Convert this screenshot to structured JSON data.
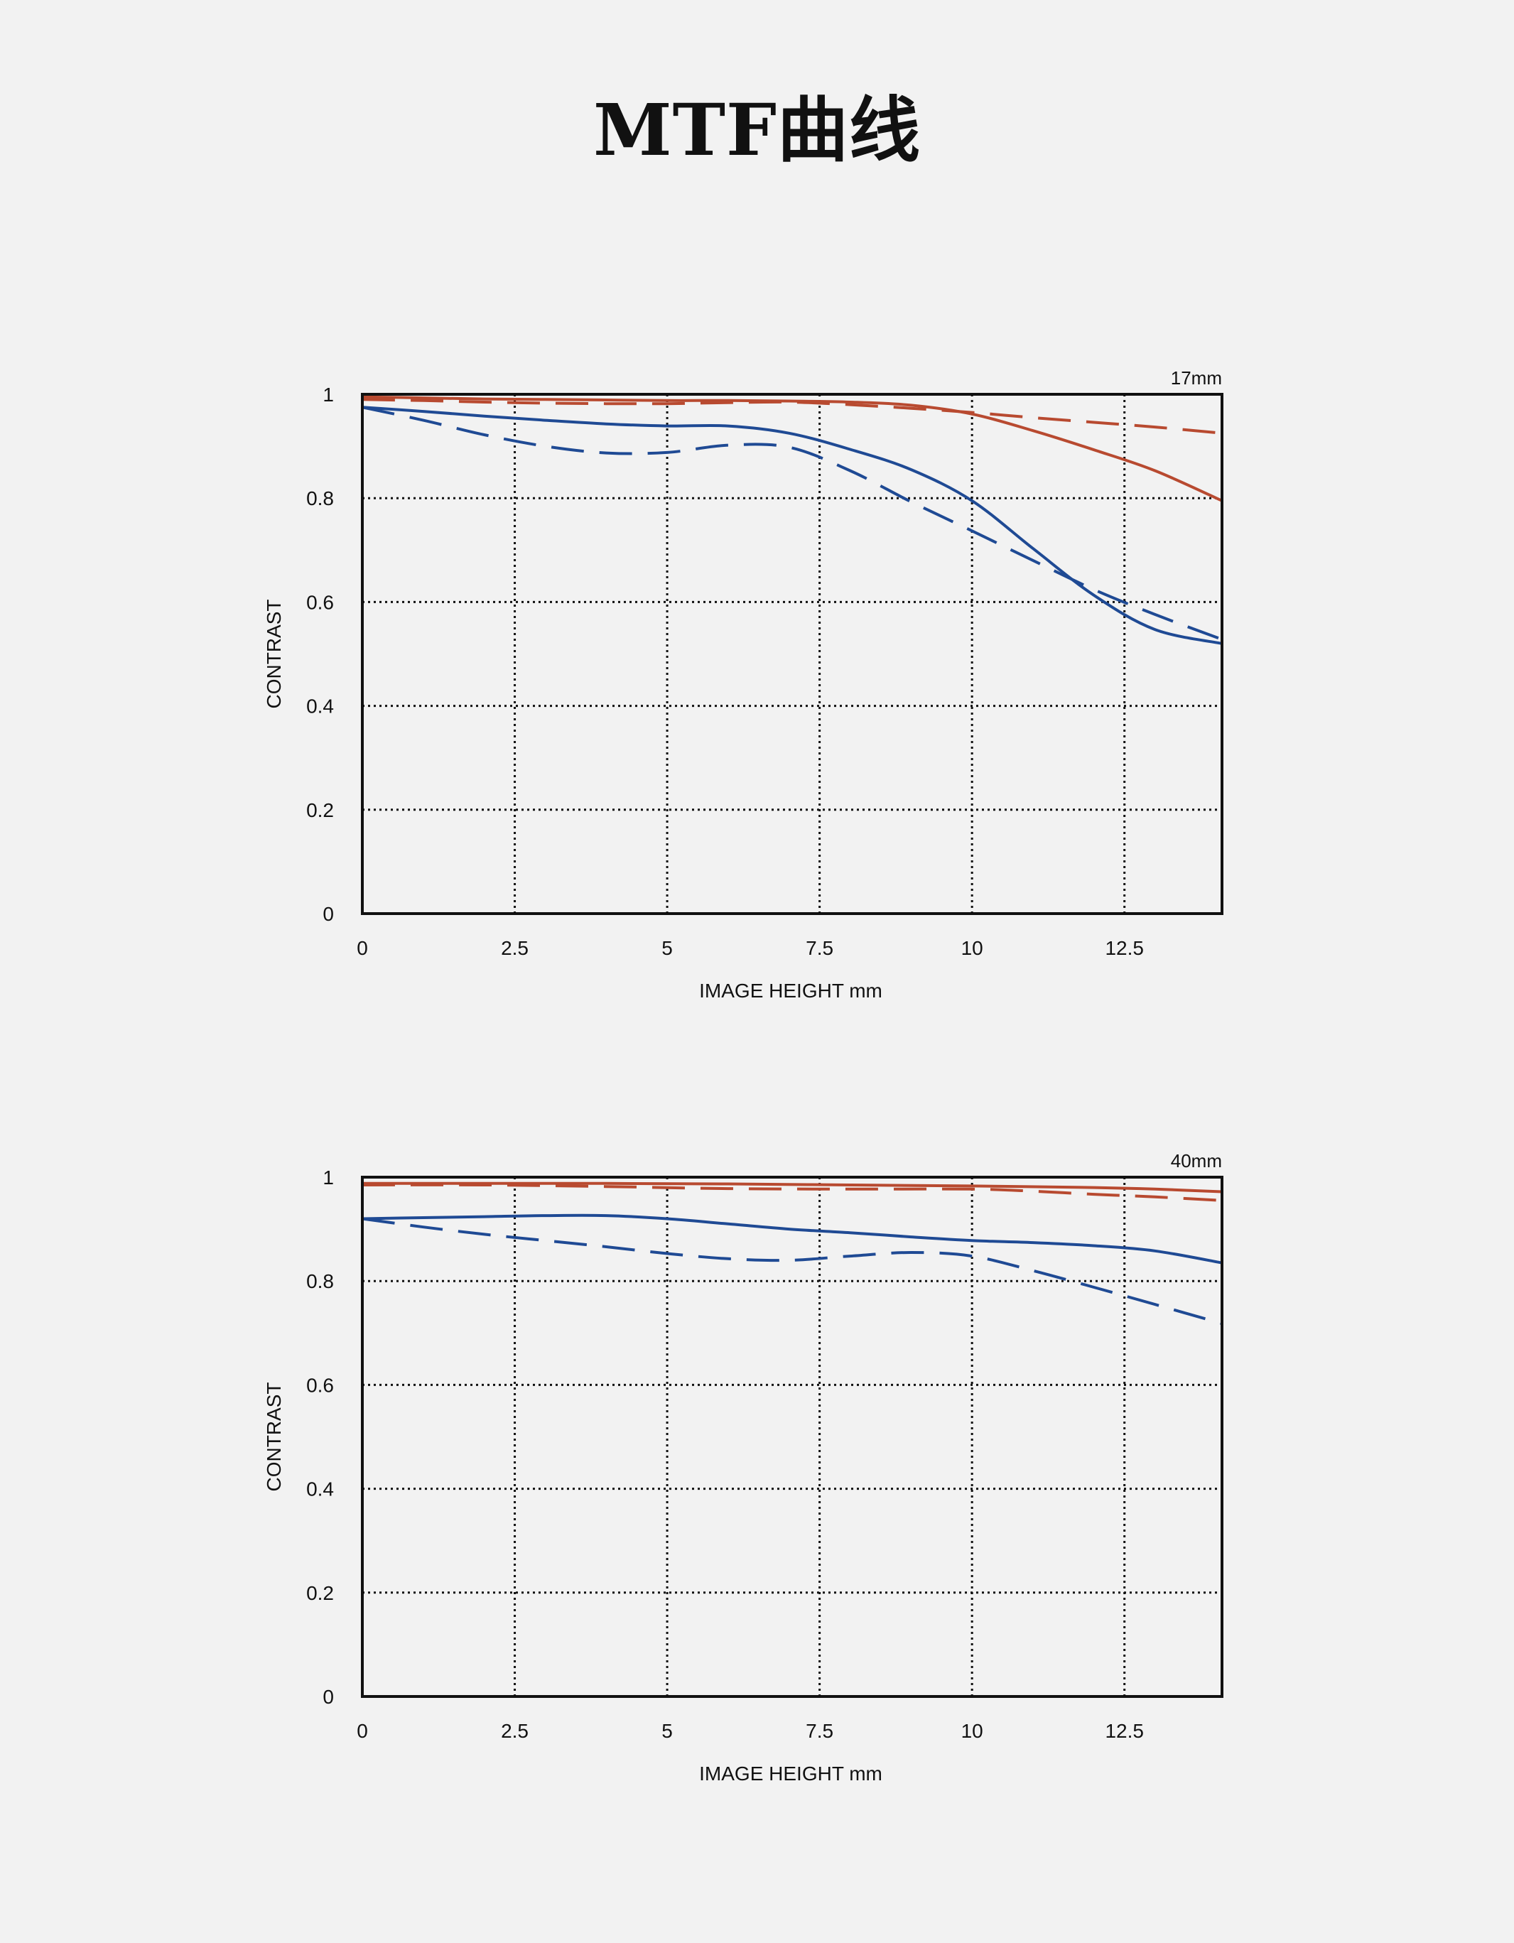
{
  "title": "MTF曲线",
  "colors": {
    "background": "#f2f2f2",
    "red_series": "#b84a30",
    "blue_series": "#1f4a94",
    "axis": "#111111",
    "grid": "#111111"
  },
  "chart_data": [
    {
      "type": "line",
      "title": "",
      "annotation": "17mm",
      "xlabel": "IMAGE HEIGHT  mm",
      "ylabel": "CONTRAST",
      "xlim": [
        0,
        14.1
      ],
      "ylim": [
        0,
        1
      ],
      "x_ticks": [
        "0",
        "2.5",
        "5",
        "7.5",
        "10",
        "12.5"
      ],
      "y_ticks": [
        "0",
        "0.2",
        "0.4",
        "0.6",
        "0.8",
        "1"
      ],
      "grid": "dotted",
      "legend": "none",
      "series": [
        {
          "color": "#b84a30",
          "style": "solid",
          "x": [
            0,
            1,
            2,
            3,
            4,
            5,
            6,
            7,
            8,
            9,
            10,
            11,
            12,
            13,
            14.1
          ],
          "y": [
            0.995,
            0.993,
            0.991,
            0.99,
            0.989,
            0.988,
            0.988,
            0.987,
            0.985,
            0.979,
            0.962,
            0.93,
            0.893,
            0.853,
            0.795
          ]
        },
        {
          "color": "#b84a30",
          "style": "dashed",
          "x": [
            0,
            1,
            2,
            3,
            4,
            5,
            6,
            7,
            8,
            9,
            10,
            11,
            12,
            13,
            14.1
          ],
          "y": [
            0.99,
            0.988,
            0.985,
            0.983,
            0.982,
            0.982,
            0.984,
            0.985,
            0.98,
            0.973,
            0.965,
            0.955,
            0.946,
            0.937,
            0.925
          ]
        },
        {
          "color": "#1f4a94",
          "style": "solid",
          "x": [
            0,
            1,
            2,
            3,
            4,
            5,
            6,
            7,
            8,
            9,
            10,
            11,
            12,
            13,
            14.1
          ],
          "y": [
            0.975,
            0.967,
            0.958,
            0.95,
            0.943,
            0.939,
            0.939,
            0.925,
            0.894,
            0.855,
            0.795,
            0.703,
            0.613,
            0.547,
            0.52
          ]
        },
        {
          "color": "#1f4a94",
          "style": "dashed",
          "x": [
            0,
            1,
            2,
            3,
            4,
            5,
            6,
            7,
            8,
            9,
            10,
            11,
            12,
            13,
            14.1
          ],
          "y": [
            0.975,
            0.95,
            0.922,
            0.9,
            0.887,
            0.888,
            0.902,
            0.898,
            0.853,
            0.793,
            0.737,
            0.68,
            0.624,
            0.576,
            0.528
          ]
        }
      ]
    },
    {
      "type": "line",
      "title": "",
      "annotation": "40mm",
      "xlabel": "IMAGE HEIGHT  mm",
      "ylabel": "CONTRAST",
      "xlim": [
        0,
        14.1
      ],
      "ylim": [
        0,
        1
      ],
      "x_ticks": [
        "0",
        "2.5",
        "5",
        "7.5",
        "10",
        "12.5"
      ],
      "y_ticks": [
        "0",
        "0.2",
        "0.4",
        "0.6",
        "0.8",
        "1"
      ],
      "grid": "dotted",
      "legend": "none",
      "series": [
        {
          "color": "#b84a30",
          "style": "solid",
          "x": [
            0,
            2,
            4,
            6,
            8,
            10,
            12,
            13,
            14.1
          ],
          "y": [
            0.988,
            0.988,
            0.988,
            0.987,
            0.985,
            0.983,
            0.98,
            0.977,
            0.972
          ]
        },
        {
          "color": "#b84a30",
          "style": "dashed",
          "x": [
            0,
            2,
            4,
            6,
            8,
            10,
            11,
            12,
            13,
            14.1
          ],
          "y": [
            0.985,
            0.985,
            0.982,
            0.978,
            0.977,
            0.977,
            0.973,
            0.967,
            0.962,
            0.955
          ]
        },
        {
          "color": "#1f4a94",
          "style": "solid",
          "x": [
            0,
            1,
            2,
            3,
            4,
            5,
            6,
            7,
            8,
            9,
            10,
            11,
            12,
            13,
            14.1
          ],
          "y": [
            0.92,
            0.922,
            0.924,
            0.926,
            0.926,
            0.92,
            0.91,
            0.9,
            0.893,
            0.885,
            0.878,
            0.874,
            0.868,
            0.858,
            0.835
          ]
        },
        {
          "color": "#1f4a94",
          "style": "dashed",
          "x": [
            0,
            1,
            2,
            3,
            4,
            5,
            6,
            7,
            8,
            9,
            10,
            11,
            12,
            13,
            14.1
          ],
          "y": [
            0.92,
            0.904,
            0.89,
            0.878,
            0.866,
            0.853,
            0.843,
            0.84,
            0.848,
            0.855,
            0.848,
            0.82,
            0.788,
            0.755,
            0.718
          ]
        }
      ]
    }
  ]
}
